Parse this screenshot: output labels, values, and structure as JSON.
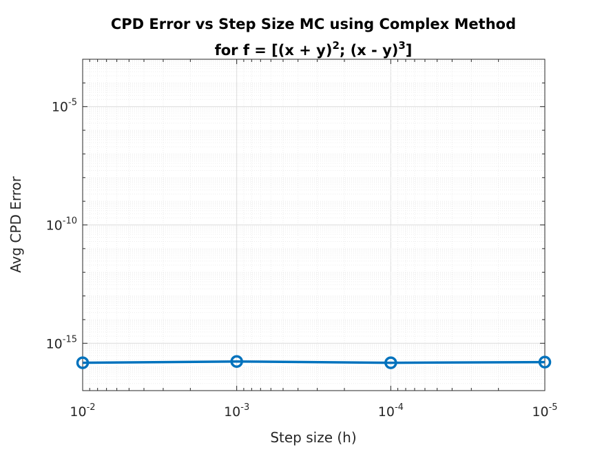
{
  "chart_data": {
    "type": "line",
    "title_line1": "CPD Error vs Step Size MC using Complex Method",
    "title_line2_prefix": "for f = [(x + y)",
    "title_line2_exp1": "2",
    "title_line2_mid": "; (x - y)",
    "title_line2_exp2": "3",
    "title_line2_suffix": "]",
    "xlabel": "Step size (h)",
    "ylabel": "Avg CPD Error",
    "x_scale": "log",
    "x_direction": "reversed",
    "y_scale": "log",
    "xlim": [
      0.01,
      1e-05
    ],
    "ylim": [
      1e-17,
      0.001
    ],
    "x_ticks": [
      {
        "value": 0.01,
        "base": "10",
        "exp": "-2"
      },
      {
        "value": 0.001,
        "base": "10",
        "exp": "-3"
      },
      {
        "value": 0.0001,
        "base": "10",
        "exp": "-4"
      },
      {
        "value": 1e-05,
        "base": "10",
        "exp": "-5"
      }
    ],
    "y_ticks": [
      {
        "value": 1e-15,
        "base": "10",
        "exp": "-15"
      },
      {
        "value": 1e-10,
        "base": "10",
        "exp": "-10"
      },
      {
        "value": 1e-05,
        "base": "10",
        "exp": "-5"
      }
    ],
    "grid": true,
    "minor_grid": true,
    "series": [
      {
        "x": [
          0.01,
          0.001,
          0.0001,
          1e-05
        ],
        "y": [
          1.5e-16,
          1.7e-16,
          1.5e-16,
          1.6e-16
        ],
        "marker": "circle",
        "color": "#0072BD"
      }
    ]
  }
}
